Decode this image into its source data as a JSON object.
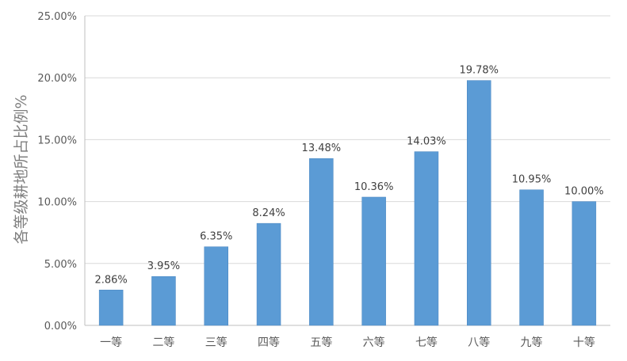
{
  "chart_data": {
    "type": "bar",
    "categories": [
      "一等",
      "二等",
      "三等",
      "四等",
      "五等",
      "六等",
      "七等",
      "八等",
      "九等",
      "十等"
    ],
    "values": [
      2.86,
      3.95,
      6.35,
      8.24,
      13.48,
      10.36,
      14.03,
      19.78,
      10.95,
      10.0
    ],
    "data_labels": [
      "2.86%",
      "3.95%",
      "6.35%",
      "8.24%",
      "13.48%",
      "10.36%",
      "14.03%",
      "19.78%",
      "10.95%",
      "10.00%"
    ],
    "title": "",
    "xlabel": "",
    "ylabel": "各等级耕地所占比例%",
    "ylim": [
      0,
      25
    ],
    "yticks": [
      0,
      5,
      10,
      15,
      20,
      25
    ],
    "ytick_labels": [
      "0.00%",
      "5.00%",
      "10.00%",
      "15.00%",
      "20.00%",
      "25.00%"
    ],
    "grid": true,
    "legend": "none",
    "colors": {
      "bar": "#5b9bd5",
      "bar_edge": "#4a86c0"
    }
  }
}
